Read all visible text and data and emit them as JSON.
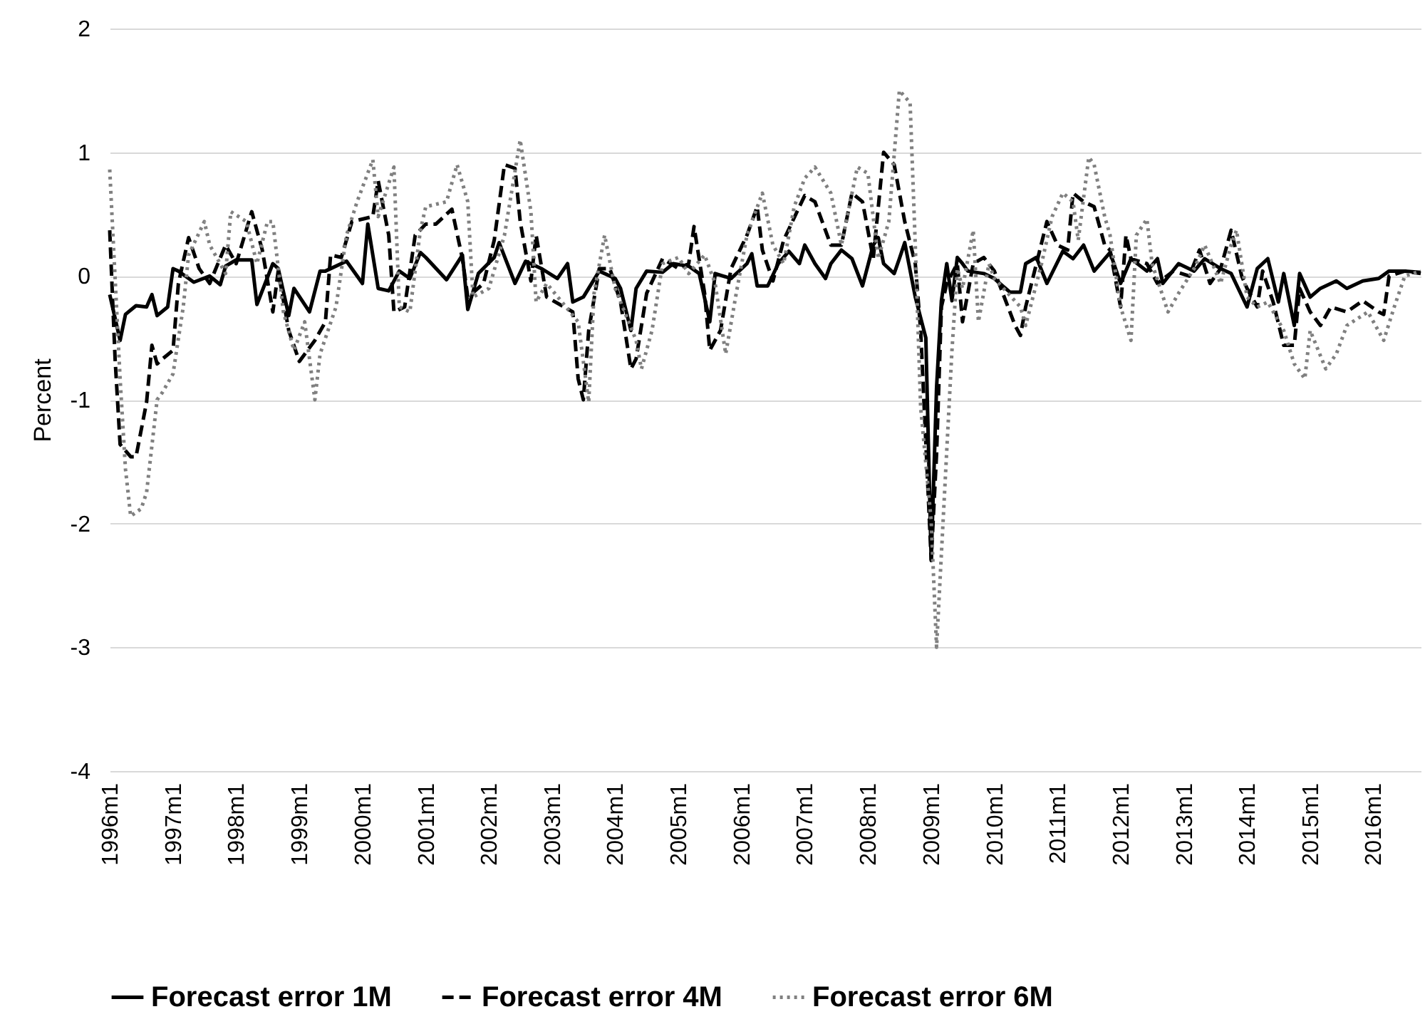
{
  "chart_data": {
    "type": "line",
    "ylabel": "Percent",
    "xlim": [
      "1996-01",
      "2016-10"
    ],
    "ylim": [
      -4,
      2
    ],
    "yticks": [
      -4,
      -3,
      -2,
      -1,
      0,
      1,
      2
    ],
    "xticks": [
      {
        "value": "1996-01",
        "label": "1996m1"
      },
      {
        "value": "1997-01",
        "label": "1997m1"
      },
      {
        "value": "1998-01",
        "label": "1998m1"
      },
      {
        "value": "1999-01",
        "label": "1999m1"
      },
      {
        "value": "2000-01",
        "label": "2000m1"
      },
      {
        "value": "2001-01",
        "label": "2001m1"
      },
      {
        "value": "2002-01",
        "label": "2002m1"
      },
      {
        "value": "2003-01",
        "label": "2003m1"
      },
      {
        "value": "2004-01",
        "label": "2004m1"
      },
      {
        "value": "2005-01",
        "label": "2005m1"
      },
      {
        "value": "2006-01",
        "label": "2006m1"
      },
      {
        "value": "2007-01",
        "label": "2007m1"
      },
      {
        "value": "2008-01",
        "label": "2008m1"
      },
      {
        "value": "2009-01",
        "label": "2009m1"
      },
      {
        "value": "2010-01",
        "label": "2010m1"
      },
      {
        "value": "2011-01",
        "label": "2011m1"
      },
      {
        "value": "2012-01",
        "label": "2012m1"
      },
      {
        "value": "2013-01",
        "label": "2013m1"
      },
      {
        "value": "2014-01",
        "label": "2014m1"
      },
      {
        "value": "2015-01",
        "label": "2015m1"
      },
      {
        "value": "2016-01",
        "label": "2016m1"
      }
    ],
    "grid": "y",
    "legend": "bottom",
    "marker": "none",
    "series": [
      {
        "name": "Forecast error 1M",
        "color": "#000000",
        "line_style": "solid",
        "x": [
          "1996-01",
          "1996-03",
          "1996-04",
          "1996-06",
          "1996-08",
          "1996-09",
          "1996-10",
          "1996-12",
          "1997-01",
          "1997-02",
          "1997-05",
          "1997-08",
          "1997-10",
          "1997-11",
          "1998-01",
          "1998-04",
          "1998-05",
          "1998-08",
          "1998-09",
          "1998-11",
          "1998-12",
          "1999-03",
          "1999-05",
          "1999-06",
          "1999-10",
          "2000-01",
          "2000-02",
          "2000-04",
          "2000-06",
          "2000-08",
          "2000-10",
          "2000-12",
          "2001-01",
          "2001-05",
          "2001-08",
          "2001-09",
          "2001-11",
          "2002-02",
          "2002-03",
          "2002-06",
          "2002-08",
          "2002-11",
          "2003-02",
          "2003-04",
          "2003-05",
          "2003-07",
          "2003-10",
          "2004-01",
          "2004-02",
          "2004-04",
          "2004-05",
          "2004-07",
          "2004-10",
          "2004-12",
          "2005-03",
          "2005-05",
          "2005-07",
          "2005-08",
          "2005-11",
          "2006-02",
          "2006-03",
          "2006-04",
          "2006-06",
          "2006-08",
          "2006-10",
          "2006-12",
          "2007-01",
          "2007-03",
          "2007-05",
          "2007-06",
          "2007-08",
          "2007-10",
          "2007-12",
          "2008-02",
          "2008-03",
          "2008-04",
          "2008-06",
          "2008-07",
          "2008-08",
          "2008-10",
          "2008-12",
          "2009-01",
          "2009-02",
          "2009-03",
          "2009-04",
          "2009-05",
          "2009-06",
          "2009-07",
          "2009-08",
          "2009-11",
          "2010-01",
          "2010-02",
          "2010-04",
          "2010-06",
          "2010-07",
          "2010-09",
          "2010-11",
          "2011-02",
          "2011-04",
          "2011-06",
          "2011-08",
          "2011-11",
          "2012-01",
          "2012-03",
          "2012-06",
          "2012-08",
          "2012-09",
          "2012-12",
          "2013-03",
          "2013-05",
          "2013-08",
          "2013-10",
          "2014-01",
          "2014-03",
          "2014-05",
          "2014-07",
          "2014-08",
          "2014-10",
          "2014-11",
          "2015-01",
          "2015-03",
          "2015-06",
          "2015-08",
          "2015-11",
          "2016-02",
          "2016-04",
          "2016-07",
          "2016-10"
        ],
        "values": [
          -0.15,
          -0.52,
          -0.31,
          -0.24,
          -0.25,
          -0.15,
          -0.32,
          -0.25,
          0.06,
          0.04,
          -0.05,
          0.0,
          -0.07,
          0.08,
          0.13,
          0.13,
          -0.23,
          0.1,
          0.06,
          -0.32,
          -0.1,
          -0.29,
          0.04,
          0.04,
          0.12,
          -0.06,
          0.42,
          -0.1,
          -0.12,
          0.04,
          -0.02,
          0.19,
          0.15,
          -0.03,
          0.17,
          -0.27,
          0.02,
          0.15,
          0.27,
          -0.06,
          0.12,
          0.06,
          -0.02,
          0.1,
          -0.21,
          -0.17,
          0.04,
          -0.02,
          -0.1,
          -0.44,
          -0.1,
          0.04,
          0.03,
          0.1,
          0.08,
          0.02,
          -0.37,
          0.02,
          -0.02,
          0.1,
          0.18,
          -0.08,
          -0.08,
          0.1,
          0.2,
          0.1,
          0.25,
          0.1,
          -0.02,
          0.1,
          0.21,
          0.14,
          -0.08,
          0.25,
          0.31,
          0.1,
          0.02,
          0.14,
          0.27,
          -0.17,
          -0.5,
          -2.3,
          -0.9,
          -0.2,
          0.1,
          -0.2,
          0.15,
          0.1,
          0.04,
          0.02,
          -0.02,
          -0.06,
          -0.13,
          -0.13,
          0.1,
          0.15,
          -0.06,
          0.2,
          0.14,
          0.25,
          0.04,
          0.19,
          -0.06,
          0.14,
          0.04,
          0.14,
          -0.06,
          0.1,
          0.04,
          0.14,
          0.06,
          0.02,
          -0.25,
          0.06,
          0.14,
          -0.21,
          0.02,
          -0.4,
          0.02,
          -0.17,
          -0.1,
          -0.04,
          -0.1,
          -0.04,
          -0.02,
          0.04,
          0.04,
          0.03
        ]
      },
      {
        "name": "Forecast error 4M",
        "color": "#000000",
        "line_style": "dashed",
        "x": [
          "1996-01",
          "1996-02",
          "1996-03",
          "1996-05",
          "1996-06",
          "1996-08",
          "1996-09",
          "1996-10",
          "1996-11",
          "1997-01",
          "1997-02",
          "1997-04",
          "1997-06",
          "1997-08",
          "1997-11",
          "1998-01",
          "1998-04",
          "1998-06",
          "1998-08",
          "1998-09",
          "1998-11",
          "1999-01",
          "1999-04",
          "1999-06",
          "1999-07",
          "1999-09",
          "1999-11",
          "2000-03",
          "2000-04",
          "2000-06",
          "2000-07",
          "2000-09",
          "2000-11",
          "2001-01",
          "2001-03",
          "2001-06",
          "2001-08",
          "2001-09",
          "2001-12",
          "2002-02",
          "2002-04",
          "2002-06",
          "2002-07",
          "2002-09",
          "2002-10",
          "2002-12",
          "2003-05",
          "2003-06",
          "2003-07",
          "2003-08",
          "2003-10",
          "2003-12",
          "2004-02",
          "2004-04",
          "2004-05",
          "2004-07",
          "2004-10",
          "2005-01",
          "2005-03",
          "2005-04",
          "2005-06",
          "2005-07",
          "2005-09",
          "2005-11",
          "2006-02",
          "2006-04",
          "2006-05",
          "2006-07",
          "2006-09",
          "2006-12",
          "2007-01",
          "2007-03",
          "2007-06",
          "2007-08",
          "2007-10",
          "2007-12",
          "2008-02",
          "2008-04",
          "2008-06",
          "2008-08",
          "2008-10",
          "2008-11",
          "2009-01",
          "2009-02",
          "2009-03",
          "2009-04",
          "2009-06",
          "2009-07",
          "2009-09",
          "2009-11",
          "2010-01",
          "2010-05",
          "2010-06",
          "2010-07",
          "2010-11",
          "2011-01",
          "2011-03",
          "2011-04",
          "2011-06",
          "2011-08",
          "2011-10",
          "2011-11",
          "2012-01",
          "2012-02",
          "2012-03",
          "2012-06",
          "2012-08",
          "2012-11",
          "2013-02",
          "2013-04",
          "2013-06",
          "2013-08",
          "2013-10",
          "2013-12",
          "2014-01",
          "2014-03",
          "2014-04",
          "2014-06",
          "2014-08",
          "2014-10",
          "2014-11",
          "2015-01",
          "2015-03",
          "2015-05",
          "2015-08",
          "2015-11",
          "2016-02",
          "2016-03",
          "2016-04",
          "2016-07",
          "2016-10"
        ],
        "values": [
          0.37,
          -0.67,
          -1.36,
          -1.46,
          -1.46,
          -1.02,
          -0.56,
          -0.71,
          -0.67,
          -0.6,
          -0.06,
          0.31,
          0.06,
          -0.06,
          0.25,
          0.1,
          0.52,
          0.21,
          -0.29,
          0.04,
          -0.44,
          -0.69,
          -0.52,
          -0.37,
          0.17,
          0.15,
          0.44,
          0.48,
          0.77,
          0.33,
          -0.29,
          -0.25,
          0.33,
          0.42,
          0.42,
          0.54,
          0.14,
          -0.17,
          -0.06,
          0.29,
          0.9,
          0.87,
          0.44,
          -0.04,
          0.33,
          -0.17,
          -0.29,
          -0.83,
          -1.0,
          -0.44,
          0.06,
          0.06,
          -0.21,
          -0.75,
          -0.67,
          -0.14,
          0.14,
          0.06,
          0.1,
          0.4,
          -0.14,
          -0.6,
          -0.44,
          0.06,
          0.33,
          0.56,
          0.21,
          -0.04,
          0.29,
          0.56,
          0.65,
          0.6,
          0.25,
          0.25,
          0.67,
          0.6,
          0.14,
          1.0,
          0.9,
          0.44,
          0.1,
          -0.44,
          -2.29,
          -1.44,
          -0.25,
          -0.06,
          0.1,
          -0.37,
          0.1,
          0.15,
          0.04,
          -0.4,
          -0.48,
          -0.25,
          0.44,
          0.25,
          0.21,
          0.67,
          0.6,
          0.56,
          0.25,
          0.21,
          -0.25,
          0.33,
          0.14,
          0.1,
          -0.06,
          0.04,
          0.0,
          0.21,
          -0.06,
          0.06,
          0.37,
          0.0,
          -0.1,
          -0.25,
          0.04,
          -0.21,
          -0.56,
          -0.56,
          -0.1,
          -0.29,
          -0.4,
          -0.25,
          -0.29,
          -0.2,
          -0.29,
          -0.31,
          0.0,
          0.04,
          0.02
        ]
      },
      {
        "name": "Forecast error 6M",
        "color": "#808080",
        "line_style": "dotted",
        "x": [
          "1996-01",
          "1996-03",
          "1996-04",
          "1996-05",
          "1996-07",
          "1996-08",
          "1996-10",
          "1996-11",
          "1997-01",
          "1997-03",
          "1997-04",
          "1997-07",
          "1997-08",
          "1997-11",
          "1997-12",
          "1998-03",
          "1998-05",
          "1998-07",
          "1998-08",
          "1998-10",
          "1998-12",
          "1999-02",
          "1999-04",
          "1999-05",
          "1999-08",
          "1999-10",
          "1999-12",
          "2000-03",
          "2000-04",
          "2000-07",
          "2000-08",
          "2000-10",
          "2000-12",
          "2001-01",
          "2001-05",
          "2001-07",
          "2001-09",
          "2001-10",
          "2002-01",
          "2002-04",
          "2002-07",
          "2002-09",
          "2002-10",
          "2002-12",
          "2003-06",
          "2003-08",
          "2003-09",
          "2003-11",
          "2004-01",
          "2004-05",
          "2004-06",
          "2004-08",
          "2004-10",
          "2005-01",
          "2005-03",
          "2005-06",
          "2005-08",
          "2005-10",
          "2005-12",
          "2006-02",
          "2006-05",
          "2006-07",
          "2006-09",
          "2006-11",
          "2007-01",
          "2007-03",
          "2007-06",
          "2007-08",
          "2007-11",
          "2008-01",
          "2008-03",
          "2008-05",
          "2008-07",
          "2008-09",
          "2008-10",
          "2008-11",
          "2009-01",
          "2009-02",
          "2009-05",
          "2009-06",
          "2009-07",
          "2009-09",
          "2009-10",
          "2009-12",
          "2010-01",
          "2010-06",
          "2010-07",
          "2010-10",
          "2010-12",
          "2011-02",
          "2011-04",
          "2011-05",
          "2011-07",
          "2011-08",
          "2011-10",
          "2011-11",
          "2012-01",
          "2012-03",
          "2012-04",
          "2012-06",
          "2012-07",
          "2012-10",
          "2012-12",
          "2013-03",
          "2013-05",
          "2013-08",
          "2013-10",
          "2013-11",
          "2014-01",
          "2014-03",
          "2014-05",
          "2014-08",
          "2014-10",
          "2014-12",
          "2015-01",
          "2015-04",
          "2015-06",
          "2015-08",
          "2015-12",
          "2016-03",
          "2016-05",
          "2016-07",
          "2016-10"
        ],
        "values": [
          0.86,
          -0.83,
          -1.56,
          -1.94,
          -1.88,
          -1.75,
          -1.0,
          -0.94,
          -0.79,
          -0.25,
          0.17,
          0.44,
          0.25,
          0.02,
          0.52,
          0.44,
          0.1,
          0.44,
          0.44,
          -0.29,
          -0.6,
          -0.37,
          -1.0,
          -0.63,
          -0.25,
          0.33,
          0.6,
          0.94,
          0.48,
          0.88,
          -0.25,
          -0.29,
          0.37,
          0.56,
          0.6,
          0.9,
          0.6,
          -0.17,
          -0.1,
          0.33,
          1.1,
          0.52,
          -0.21,
          -0.06,
          -0.37,
          -1.02,
          -0.14,
          0.33,
          -0.1,
          -0.52,
          -0.75,
          -0.44,
          0.1,
          0.15,
          0.02,
          0.17,
          -0.06,
          -0.63,
          -0.14,
          0.33,
          0.67,
          0.25,
          0.1,
          0.56,
          0.79,
          0.88,
          0.67,
          0.25,
          0.88,
          0.83,
          0.14,
          0.44,
          1.5,
          1.4,
          0.25,
          -1.06,
          -1.98,
          -3.0,
          -0.6,
          0.06,
          -0.1,
          0.37,
          -0.37,
          0.1,
          -0.02,
          -0.25,
          -0.4,
          0.1,
          0.48,
          0.67,
          0.6,
          0.29,
          0.96,
          0.9,
          0.48,
          0.33,
          -0.25,
          -0.52,
          0.33,
          0.46,
          0.1,
          -0.29,
          -0.14,
          0.06,
          0.25,
          -0.06,
          0.25,
          0.37,
          -0.17,
          -0.25,
          -0.21,
          -0.44,
          -0.71,
          -0.83,
          -0.44,
          -0.75,
          -0.63,
          -0.4,
          -0.29,
          -0.52,
          -0.25,
          0.0,
          0.04
        ]
      }
    ]
  }
}
